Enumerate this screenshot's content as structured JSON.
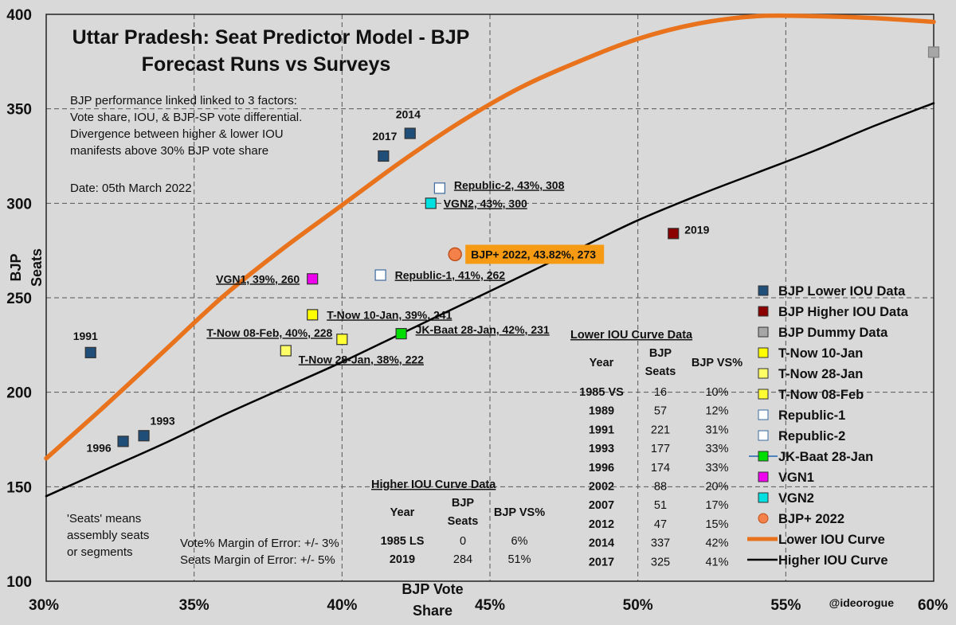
{
  "chart_data": {
    "type": "scatter",
    "title": "Uttar Pradesh: Seat Predictor Model - BJP",
    "subtitle": "Forecast Runs vs Surveys",
    "xlabel": "BJP Vote Share",
    "ylabel": "BJP Seats",
    "xlim": [
      30,
      60
    ],
    "ylim": [
      100,
      400
    ],
    "x_ticks": [
      30,
      35,
      40,
      45,
      50,
      55,
      60
    ],
    "x_tick_labels": [
      "30%",
      "35%",
      "40%",
      "45%",
      "50%",
      "55%",
      "60%"
    ],
    "y_ticks": [
      100,
      150,
      200,
      250,
      300,
      350,
      400
    ],
    "y_tick_labels": [
      "100",
      "150",
      "200",
      "250",
      "300",
      "350",
      "400"
    ],
    "grid": true,
    "series": [
      {
        "name": "BJP Lower IOU Data",
        "marker": "square",
        "color": "#1f4e79",
        "points": [
          {
            "x": 31.5,
            "y": 221,
            "label": "1991"
          },
          {
            "x": 32.6,
            "y": 174,
            "label": "1996"
          },
          {
            "x": 33.3,
            "y": 177,
            "label": "1993"
          },
          {
            "x": 41.4,
            "y": 325,
            "label": "2017"
          },
          {
            "x": 42.3,
            "y": 337,
            "label": "2014"
          }
        ]
      },
      {
        "name": "BJP Higher IOU Data",
        "marker": "square",
        "color": "#8b0000",
        "points": [
          {
            "x": 51.2,
            "y": 284,
            "label": "2019"
          }
        ]
      },
      {
        "name": "BJP Dummy Data",
        "marker": "square",
        "color": "#a6a6a6",
        "points": [
          {
            "x": 60,
            "y": 380,
            "label": ""
          }
        ]
      },
      {
        "name": "T-Now 10-Jan",
        "marker": "square",
        "color": "#ffff00",
        "points": [
          {
            "x": 39,
            "y": 241,
            "label": "T-Now 10-Jan, 39%, 241"
          }
        ]
      },
      {
        "name": "T-Now 28-Jan",
        "marker": "square",
        "color": "#ffff66",
        "points": [
          {
            "x": 38.1,
            "y": 222,
            "label": "T-Now 28-Jan, 38%, 222"
          }
        ]
      },
      {
        "name": "T-Now 08-Feb",
        "marker": "square",
        "color": "#ffff33",
        "points": [
          {
            "x": 40,
            "y": 228,
            "label": "T-Now 08-Feb, 40%, 228"
          }
        ]
      },
      {
        "name": "Republic-1",
        "marker": "square",
        "color": "#ffffff",
        "points": [
          {
            "x": 41.3,
            "y": 262,
            "label": "Republic-1, 41%, 262"
          }
        ]
      },
      {
        "name": "Republic-2",
        "marker": "square",
        "color": "#ffffff",
        "points": [
          {
            "x": 43.3,
            "y": 308,
            "label": "Republic-2, 43%, 308"
          }
        ]
      },
      {
        "name": "JK-Baat 28-Jan",
        "marker": "square",
        "color": "#00dd00",
        "points": [
          {
            "x": 42.0,
            "y": 231,
            "label": "JK-Baat 28-Jan, 42%, 231"
          }
        ]
      },
      {
        "name": "VGN1",
        "marker": "square",
        "color": "#ee00ee",
        "points": [
          {
            "x": 39,
            "y": 260,
            "label": "VGN1, 39%, 260"
          }
        ]
      },
      {
        "name": "VGN2",
        "marker": "square",
        "color": "#00e0e0",
        "points": [
          {
            "x": 43.0,
            "y": 300,
            "label": "VGN2, 43%, 300"
          }
        ]
      },
      {
        "name": "BJP+ 2022",
        "marker": "circle",
        "color": "#f4804a",
        "points": [
          {
            "x": 43.82,
            "y": 273,
            "label": "BJP+ 2022, 43.82%, 273"
          }
        ]
      }
    ],
    "curves": [
      {
        "name": "Lower IOU Curve",
        "color": "#e8731c",
        "x": [
          30,
          32,
          34,
          36,
          38,
          40,
          42,
          44,
          46,
          48,
          50,
          52,
          54,
          56,
          58,
          60
        ],
        "y": [
          165,
          193,
          222,
          251,
          276,
          299,
          322,
          343,
          361,
          375,
          387,
          395,
          399,
          399,
          398,
          396
        ]
      },
      {
        "name": "Higher IOU Curve",
        "color": "#000000",
        "x": [
          30,
          32,
          34,
          36,
          38,
          40,
          42,
          44,
          46,
          48,
          50,
          52,
          54,
          56,
          58,
          60
        ],
        "y": [
          145,
          159,
          173,
          188,
          202,
          216,
          231,
          246,
          261,
          276,
          291,
          304,
          316,
          328,
          341,
          353
        ]
      }
    ]
  },
  "info_text": [
    "BJP performance linked linked to 3 factors:",
    "Vote share, IOU, & BJP-SP vote differential.",
    "Divergence between higher & lower IOU",
    "manifests above 30% BJP vote share"
  ],
  "date_text": "Date: 05th March 2022",
  "seats_note": [
    "'Seats' means",
    "assembly seats",
    "or segments"
  ],
  "margin_notes": [
    "Vote% Margin of Error: +/- 3%",
    "Seats Margin of Error: +/- 5%"
  ],
  "credit": "@ideorogue",
  "higher_iou_table": {
    "title": "Higher IOU Curve Data",
    "headers": [
      "Year",
      "BJP",
      "Seats",
      "BJP VS%"
    ],
    "rows": [
      [
        "1985 LS",
        "0",
        "6%"
      ],
      [
        "2019",
        "284",
        "51%"
      ]
    ]
  },
  "lower_iou_table": {
    "title": "Lower IOU Curve Data",
    "headers": [
      "Year",
      "BJP",
      "Seats",
      "BJP VS%"
    ],
    "rows": [
      [
        "1985 VS",
        "16",
        "10%"
      ],
      [
        "1989",
        "57",
        "12%"
      ],
      [
        "1991",
        "221",
        "31%"
      ],
      [
        "1993",
        "177",
        "33%"
      ],
      [
        "1996",
        "174",
        "33%"
      ],
      [
        "2002",
        "88",
        "20%"
      ],
      [
        "2007",
        "51",
        "17%"
      ],
      [
        "2012",
        "47",
        "15%"
      ],
      [
        "2014",
        "337",
        "42%"
      ],
      [
        "2017",
        "325",
        "41%"
      ]
    ]
  },
  "legend": {
    "items": [
      {
        "label": "BJP Lower IOU Data",
        "color": "#1f4e79",
        "shape": "square"
      },
      {
        "label": "BJP Higher IOU Data",
        "color": "#8b0000",
        "shape": "square"
      },
      {
        "label": "BJP Dummy Data",
        "color": "#a6a6a6",
        "shape": "square"
      },
      {
        "label": "T-Now 10-Jan",
        "color": "#ffff00",
        "shape": "square"
      },
      {
        "label": "T-Now 28-Jan",
        "color": "#ffff66",
        "shape": "square"
      },
      {
        "label": "T-Now 08-Feb",
        "color": "#ffff33",
        "shape": "square"
      },
      {
        "label": "Republic-1",
        "color": "#ffffff",
        "shape": "square"
      },
      {
        "label": "Republic-2",
        "color": "#ffffff",
        "shape": "square"
      },
      {
        "label": "JK-Baat 28-Jan",
        "color": "#00dd00",
        "shape": "square-line"
      },
      {
        "label": "VGN1",
        "color": "#ee00ee",
        "shape": "square"
      },
      {
        "label": "VGN2",
        "color": "#00e0e0",
        "shape": "square"
      },
      {
        "label": "BJP+ 2022",
        "color": "#f4804a",
        "shape": "circle"
      },
      {
        "label": "Lower IOU Curve",
        "color": "#e8731c",
        "shape": "thick-line"
      },
      {
        "label": "Higher IOU Curve",
        "color": "#000000",
        "shape": "line"
      }
    ]
  }
}
